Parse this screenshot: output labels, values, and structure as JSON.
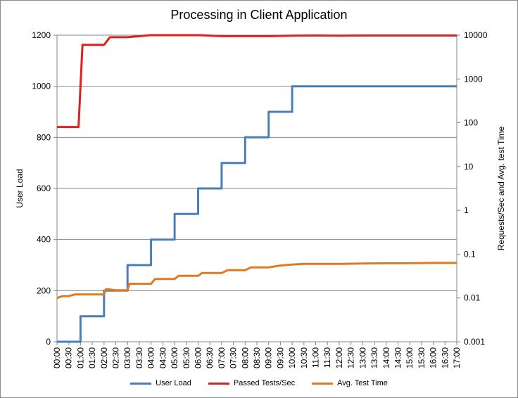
{
  "chart_data": {
    "type": "line",
    "title": "Processing in Client Application",
    "ylabel": "User Load",
    "y2label": "Requests/Sec and Avg. test Time",
    "ylim": [
      0,
      1200
    ],
    "y_ticks": [
      "0",
      "200",
      "400",
      "600",
      "800",
      "1000",
      "1200"
    ],
    "y2_scale": "log",
    "y2lim": [
      0.001,
      10000
    ],
    "y2_ticks": [
      "0.001",
      "0.01",
      "0.1",
      "1",
      "10",
      "100",
      "1000",
      "10000"
    ],
    "x_ticks": [
      "00:00",
      "00:30",
      "01:00",
      "01:30",
      "02:00",
      "02:30",
      "03:00",
      "03:30",
      "04:00",
      "04:30",
      "05:00",
      "05:30",
      "06:00",
      "06:30",
      "07:00",
      "07:30",
      "08:00",
      "08:30",
      "09:00",
      "09:30",
      "10:00",
      "10:30",
      "11:00",
      "11:30",
      "12:00",
      "12:30",
      "13:00",
      "13:30",
      "14:00",
      "14:30",
      "15:00",
      "15:30",
      "16:00",
      "16:30",
      "17:00"
    ],
    "grid": true,
    "legend_position": "bottom",
    "series": [
      {
        "name": "User Load",
        "axis": "left",
        "color": "#4a7ebb",
        "x": [
          "00:00",
          "01:00",
          "01:00",
          "02:00",
          "02:00",
          "03:00",
          "03:00",
          "04:00",
          "04:00",
          "05:00",
          "05:00",
          "06:00",
          "06:00",
          "07:00",
          "07:00",
          "08:00",
          "08:00",
          "09:00",
          "09:00",
          "10:00",
          "10:00",
          "17:00"
        ],
        "values": [
          0,
          0,
          100,
          100,
          200,
          200,
          300,
          300,
          400,
          400,
          500,
          500,
          600,
          600,
          700,
          700,
          800,
          800,
          900,
          900,
          1000,
          1000
        ]
      },
      {
        "name": "Passed Tests/Sec",
        "axis": "right",
        "color": "#e02020",
        "x": [
          "00:00",
          "00:30",
          "00:55",
          "01:00",
          "01:05",
          "01:30",
          "01:45",
          "02:00",
          "02:15",
          "03:00",
          "04:00",
          "05:00",
          "06:00",
          "07:00",
          "08:00",
          "09:00",
          "10:00",
          "11:00",
          "12:00",
          "13:00",
          "14:00",
          "15:00",
          "16:00",
          "17:00"
        ],
        "values": [
          80,
          80,
          80,
          700,
          6000,
          6000,
          6000,
          6000,
          9000,
          9000,
          10000,
          10000,
          10000,
          9500,
          9500,
          9500,
          9700,
          9800,
          9700,
          9800,
          9800,
          9800,
          9800,
          9800
        ]
      },
      {
        "name": "Avg. Test Time",
        "axis": "right",
        "color": "#e07a20",
        "x": [
          "00:00",
          "00:15",
          "00:30",
          "00:45",
          "01:00",
          "01:15",
          "01:30",
          "02:00",
          "02:05",
          "02:30",
          "03:00",
          "03:05",
          "03:30",
          "04:00",
          "04:10",
          "04:30",
          "05:00",
          "05:10",
          "05:30",
          "06:00",
          "06:10",
          "06:30",
          "07:00",
          "07:15",
          "07:30",
          "08:00",
          "08:15",
          "08:30",
          "09:00",
          "09:30",
          "10:00",
          "10:30",
          "11:00",
          "12:00",
          "13:00",
          "14:00",
          "15:00",
          "16:00",
          "17:00"
        ],
        "values": [
          0.01,
          0.011,
          0.011,
          0.012,
          0.012,
          0.012,
          0.012,
          0.012,
          0.016,
          0.015,
          0.015,
          0.021,
          0.021,
          0.021,
          0.027,
          0.027,
          0.027,
          0.032,
          0.032,
          0.032,
          0.037,
          0.037,
          0.037,
          0.043,
          0.043,
          0.043,
          0.05,
          0.05,
          0.05,
          0.055,
          0.058,
          0.06,
          0.06,
          0.06,
          0.061,
          0.062,
          0.062,
          0.063,
          0.063
        ]
      }
    ]
  },
  "colors": {
    "grid": "#868686",
    "axis": "#868686"
  }
}
